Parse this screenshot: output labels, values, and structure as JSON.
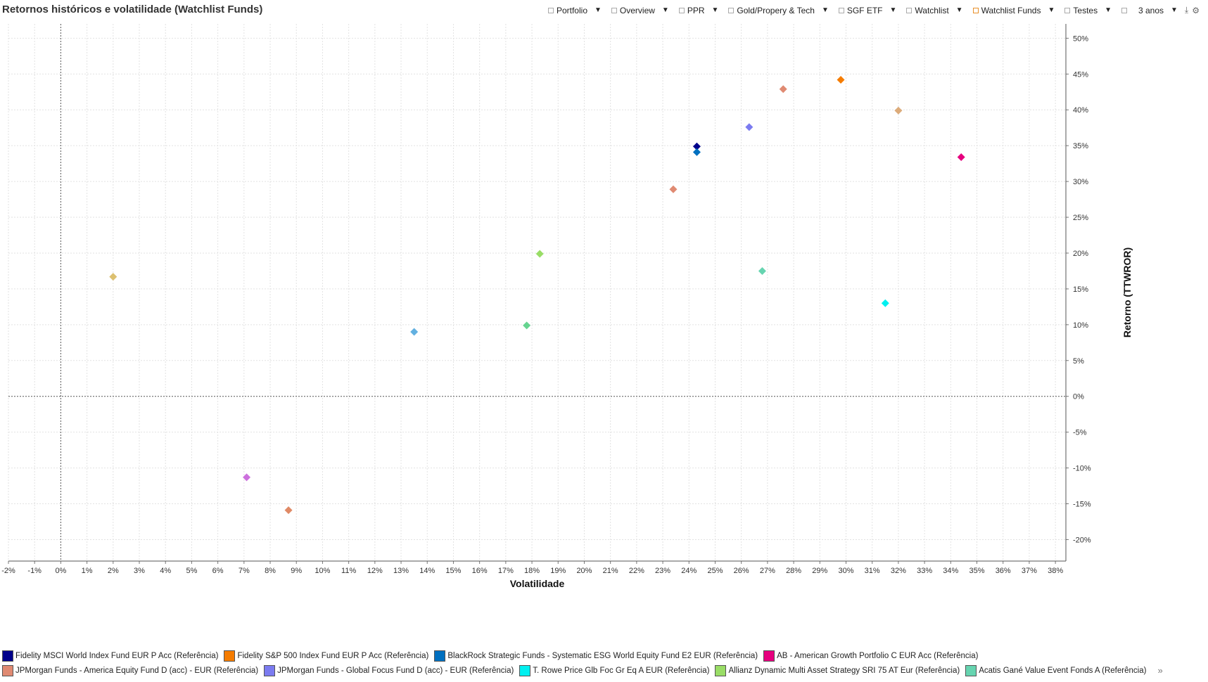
{
  "title": "Retornos históricos e volatilidade (Watchlist Funds)",
  "toolbar": {
    "items": [
      {
        "label": "Portfolio",
        "active": false
      },
      {
        "label": "Overview",
        "active": false
      },
      {
        "label": "PPR",
        "active": false
      },
      {
        "label": "Gold/Propery & Tech",
        "active": false
      },
      {
        "label": "SGF ETF",
        "active": false
      },
      {
        "label": "Watchlist",
        "active": false
      },
      {
        "label": "Watchlist Funds",
        "active": true
      },
      {
        "label": "Testes",
        "active": false
      }
    ],
    "period": "3 anos"
  },
  "chart_data": {
    "type": "scatter",
    "xlabel": "Volatilidade",
    "ylabel": "Retorno (TTWROR)",
    "xlim": [
      -2,
      38.4
    ],
    "ylim": [
      -23,
      52
    ],
    "x_ticks": [
      "-2%",
      "-1%",
      "0%",
      "1%",
      "2%",
      "3%",
      "4%",
      "5%",
      "6%",
      "7%",
      "8%",
      "9%",
      "10%",
      "11%",
      "12%",
      "13%",
      "14%",
      "15%",
      "16%",
      "17%",
      "18%",
      "19%",
      "20%",
      "21%",
      "22%",
      "23%",
      "24%",
      "25%",
      "26%",
      "27%",
      "28%",
      "29%",
      "30%",
      "31%",
      "32%",
      "33%",
      "34%",
      "35%",
      "36%",
      "37%",
      "38%"
    ],
    "y_ticks": [
      "50%",
      "45%",
      "40%",
      "35%",
      "30%",
      "25%",
      "20%",
      "15%",
      "10%",
      "5%",
      "0%",
      "-5%",
      "-10%",
      "-15%",
      "-20%"
    ],
    "grid": true,
    "marker": "diamond",
    "series": [
      {
        "name": "Fidelity MSCI World Index Fund EUR P Acc (Referência)",
        "color": "#00008b",
        "x": 24.3,
        "y": 34.9
      },
      {
        "name": "Fidelity S&P 500 Index Fund EUR P Acc (Referência)",
        "color": "#f57c00",
        "x": 29.8,
        "y": 44.2
      },
      {
        "name": "BlackRock Strategic Funds - Systematic ESG World Equity Fund E2 EUR (Referência)",
        "color": "#0070c0",
        "x": 24.3,
        "y": 34.1
      },
      {
        "name": "AB - American Growth Portfolio C EUR Acc (Referência)",
        "color": "#e6007e",
        "x": 34.4,
        "y": 33.4
      },
      {
        "name": "JPMorgan Funds - America Equity Fund D (acc) - EUR (Referência)",
        "color": "#e08a72",
        "x": 27.6,
        "y": 42.9
      },
      {
        "name": "JPMorgan Funds - Global Focus Fund D (acc) - EUR (Referência)",
        "color": "#7b7bf0",
        "x": 26.3,
        "y": 37.6
      },
      {
        "name": "T. Rowe Price Glb Foc Gr Eq A EUR (Referência)",
        "color": "#00f0f0",
        "x": 31.5,
        "y": 13.0
      },
      {
        "name": "Allianz Dynamic Multi Asset Strategy SRI 75 AT Eur (Referência)",
        "color": "#99dd66",
        "x": 18.3,
        "y": 19.9
      },
      {
        "name": "Acatis Gané Value Event Fonds A (Referência)",
        "color": "#66d4b0",
        "x": 26.8,
        "y": 17.5
      },
      {
        "name": "",
        "color": "#dcab7a",
        "x": 32.0,
        "y": 39.9
      },
      {
        "name": "",
        "color": "#e08a72",
        "x": 23.4,
        "y": 28.9
      },
      {
        "name": "",
        "color": "#62b0e0",
        "x": 13.5,
        "y": 9.0
      },
      {
        "name": "",
        "color": "#66d490",
        "x": 17.8,
        "y": 9.9
      },
      {
        "name": "",
        "color": "#dcc070",
        "x": 2.0,
        "y": 16.7
      },
      {
        "name": "",
        "color": "#cc70dd",
        "x": 7.1,
        "y": -11.3
      },
      {
        "name": "",
        "color": "#e08a66",
        "x": 8.7,
        "y": -15.9
      }
    ]
  },
  "legend": {
    "rows": [
      [
        {
          "label": "Fidelity MSCI World Index Fund EUR P Acc (Referência)",
          "color": "#00008b"
        },
        {
          "label": "Fidelity S&P 500 Index Fund EUR P Acc (Referência)",
          "color": "#f57c00"
        },
        {
          "label": "BlackRock Strategic Funds - Systematic ESG World Equity Fund E2 EUR (Referência)",
          "color": "#0070c0"
        },
        {
          "label": "AB - American Growth Portfolio C EUR Acc (Referência)",
          "color": "#e6007e"
        }
      ],
      [
        {
          "label": "JPMorgan Funds - America Equity Fund D (acc) - EUR (Referência)",
          "color": "#e08a72"
        },
        {
          "label": "JPMorgan Funds - Global Focus Fund D (acc) - EUR (Referência)",
          "color": "#7b7bf0"
        },
        {
          "label": "T. Rowe Price Glb Foc Gr Eq A EUR (Referência)",
          "color": "#00f0f0"
        },
        {
          "label": "Allianz Dynamic Multi Asset Strategy SRI 75 AT Eur (Referência)",
          "color": "#99dd66"
        },
        {
          "label": "Acatis Gané Value Event Fonds A (Referência)",
          "color": "#66d4b0"
        }
      ]
    ],
    "more_label": "»"
  }
}
